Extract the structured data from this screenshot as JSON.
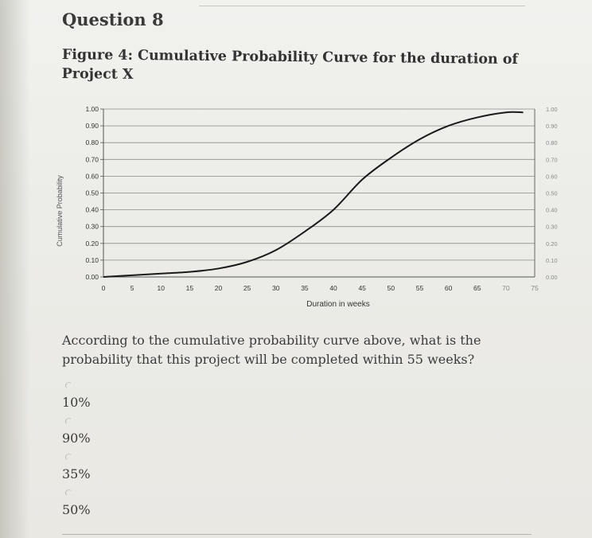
{
  "question": {
    "title": "Question 8",
    "caption": "Figure 4: Cumulative Probability Curve for the duration of Project X",
    "text": "According to the cumulative probability curve above, what is the probability that this project will be completed within 55 weeks?"
  },
  "options": [
    {
      "label": "10%"
    },
    {
      "label": "90%"
    },
    {
      "label": "35%"
    },
    {
      "label": "50%"
    }
  ],
  "colors": {
    "curve": "#1a1a1a",
    "grid": "#8a8a86",
    "text": "#3a3a3a"
  },
  "chart_data": {
    "type": "line",
    "title": "",
    "xlabel": "Duration in weeks",
    "ylabel": "Cumulative Probability",
    "xlim": [
      0,
      75
    ],
    "ylim": [
      0,
      1
    ],
    "x_ticks": [
      "0",
      "5",
      "10",
      "15",
      "20",
      "25",
      "30",
      "35",
      "40",
      "45",
      "50",
      "55",
      "60",
      "65",
      "70",
      "75"
    ],
    "y_ticks_left": [
      "0.00",
      "0.10",
      "0.20",
      "0.30",
      "0.40",
      "0.50",
      "0.60",
      "0.70",
      "0.80",
      "0.90",
      "1.00"
    ],
    "y_ticks_right": [
      "0.00",
      "0.10",
      "0.20",
      "0.30",
      "0.40",
      "0.50",
      "0.60",
      "0.70",
      "0.80",
      "0.90",
      "1.00"
    ],
    "grid": "horizontal",
    "series": [
      {
        "x": [
          0,
          5,
          10,
          15,
          20,
          25,
          30,
          35,
          40,
          45,
          50,
          55,
          60,
          65,
          70,
          73
        ],
        "y": [
          0.0,
          0.01,
          0.02,
          0.03,
          0.05,
          0.09,
          0.16,
          0.27,
          0.4,
          0.58,
          0.71,
          0.82,
          0.9,
          0.95,
          0.98,
          0.98
        ]
      }
    ]
  }
}
